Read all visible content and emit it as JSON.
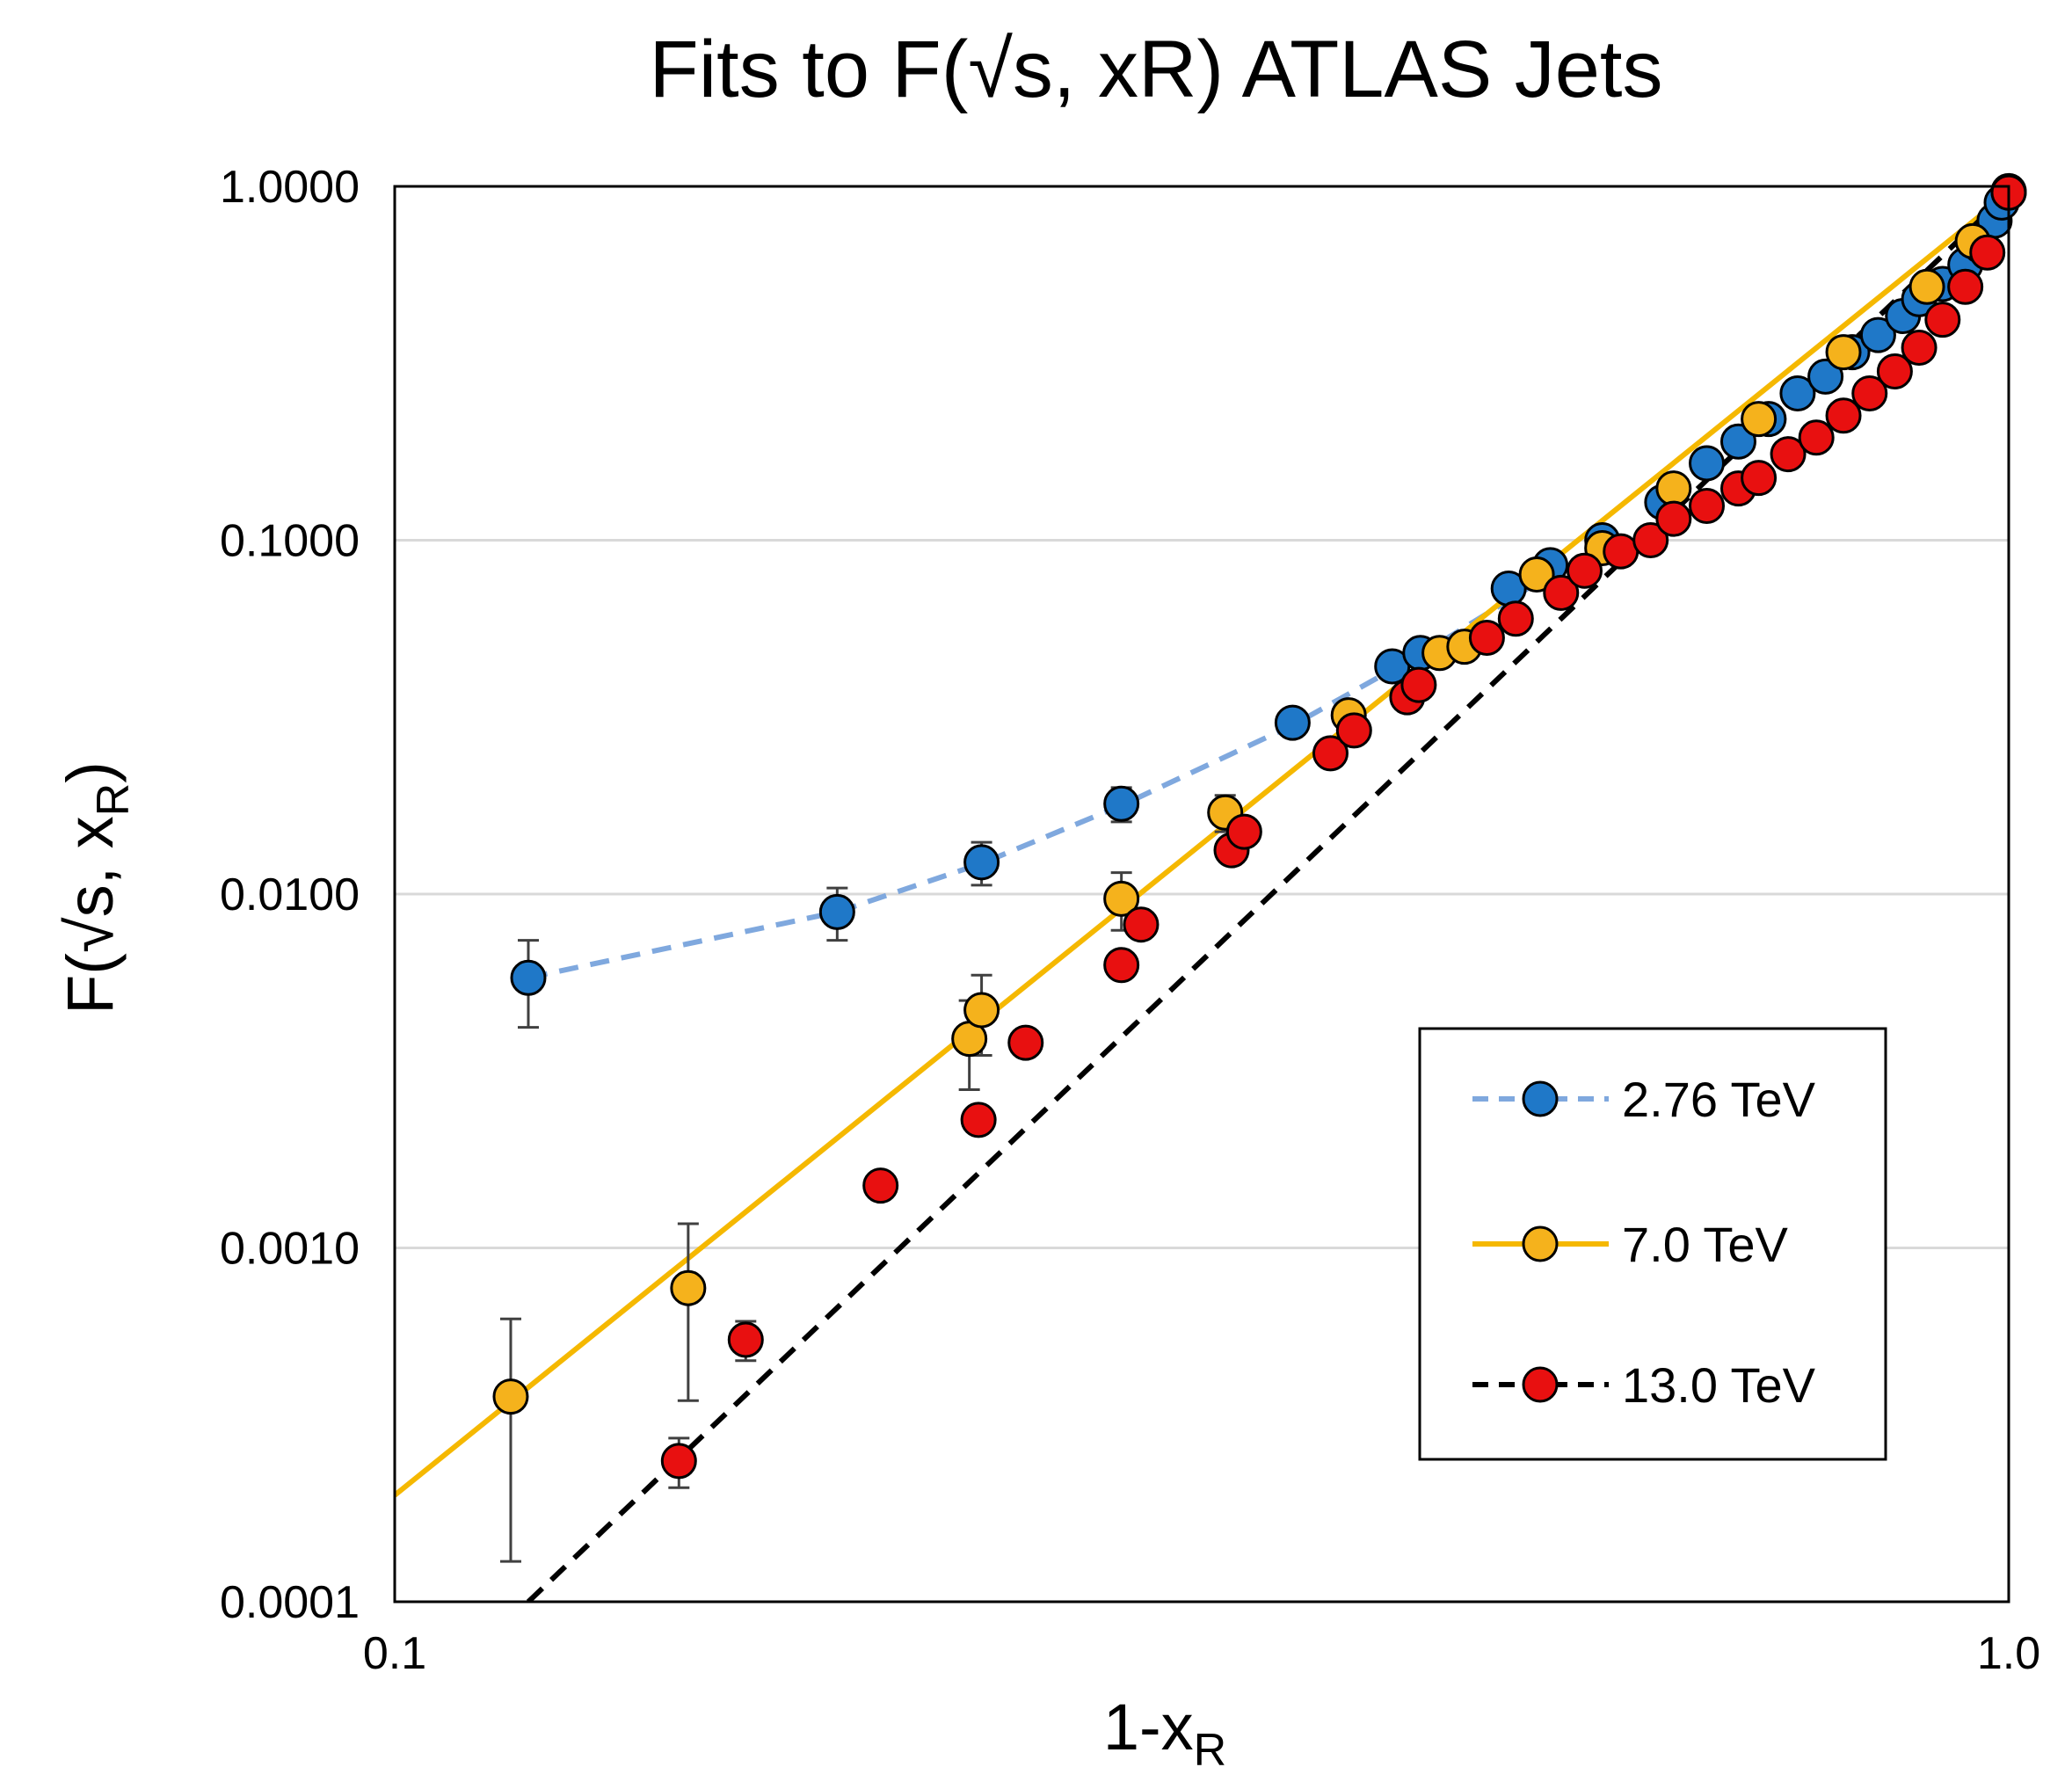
{
  "chart_data": {
    "type": "scatter",
    "title": "Fits to F(√s, xR) ATLAS Jets",
    "xlabel": "1-x",
    "xlabel_sub": "R",
    "ylabel": "F(√s, x",
    "ylabel_sub": "R",
    "ylabel_close": ")",
    "xscale": "log",
    "yscale": "log",
    "xlim": [
      0.1,
      1.0
    ],
    "ylim": [
      0.0001,
      1.0
    ],
    "x_ticks": [
      0.1,
      1.0
    ],
    "x_tick_labels": [
      "0.1",
      "1.0"
    ],
    "y_ticks": [
      0.0001,
      0.001,
      0.01,
      0.1,
      1.0
    ],
    "y_tick_labels": [
      "0.0001",
      "0.0010",
      "0.0100",
      "0.1000",
      "1.0000"
    ],
    "grid": "horizontal",
    "legend_position": "bottom-right",
    "series": [
      {
        "name": "2.76 TeV",
        "color": "#1f78c8",
        "line_color": "#7fa8de",
        "line_style": "dashed",
        "points": [
          [
            0.121,
            0.0058,
            0.0016
          ],
          [
            0.188,
            0.0089,
            0.0015
          ],
          [
            0.231,
            0.0123,
            0.0017
          ],
          [
            0.282,
            0.018,
            0.002
          ],
          [
            0.36,
            0.0305,
            0
          ],
          [
            0.415,
            0.044,
            0
          ],
          [
            0.432,
            0.048,
            0
          ],
          [
            0.49,
            0.073,
            0
          ],
          [
            0.52,
            0.085,
            0
          ],
          [
            0.56,
            0.1,
            0
          ],
          [
            0.61,
            0.128,
            0
          ],
          [
            0.65,
            0.165,
            0
          ],
          [
            0.68,
            0.19,
            0
          ],
          [
            0.71,
            0.22,
            0
          ],
          [
            0.74,
            0.26,
            0
          ],
          [
            0.77,
            0.29,
            0
          ],
          [
            0.8,
            0.34,
            0
          ],
          [
            0.83,
            0.38,
            0
          ],
          [
            0.86,
            0.43,
            0
          ],
          [
            0.88,
            0.48,
            0
          ],
          [
            0.91,
            0.53,
            0
          ],
          [
            0.94,
            0.6,
            0
          ],
          [
            0.96,
            0.68,
            0
          ],
          [
            0.98,
            0.8,
            0
          ],
          [
            0.99,
            0.9,
            0
          ],
          [
            1.0,
            0.97,
            0
          ]
        ],
        "fit": [
          [
            0.121,
            0.0058
          ],
          [
            0.188,
            0.0089
          ],
          [
            0.231,
            0.0122
          ],
          [
            0.282,
            0.0178
          ],
          [
            0.36,
            0.03
          ],
          [
            0.44,
            0.05
          ],
          [
            0.52,
            0.08
          ]
        ]
      },
      {
        "name": "7.0 TeV",
        "color": "#f5b21c",
        "line_color": "#f5b800",
        "line_style": "solid",
        "points": [
          [
            0.118,
            0.00038,
            0.00025
          ],
          [
            0.152,
            0.00077,
            0.0004
          ],
          [
            0.227,
            0.0039,
            0.0011
          ],
          [
            0.231,
            0.0047,
            0.0012
          ],
          [
            0.282,
            0.0097,
            0.0018
          ],
          [
            0.327,
            0.017,
            0.002
          ],
          [
            0.39,
            0.032,
            0
          ],
          [
            0.444,
            0.048,
            0
          ],
          [
            0.46,
            0.05,
            0
          ],
          [
            0.51,
            0.08,
            0
          ],
          [
            0.56,
            0.095,
            0
          ],
          [
            0.62,
            0.14,
            0
          ],
          [
            0.7,
            0.22,
            0
          ],
          [
            0.79,
            0.34,
            0
          ],
          [
            0.89,
            0.52,
            0
          ],
          [
            0.95,
            0.7,
            0
          ],
          [
            1.0,
            0.96,
            0
          ]
        ],
        "fit": [
          [
            0.1,
            0.0002
          ],
          [
            1.0,
            0.96
          ]
        ]
      },
      {
        "name": "13.0 TeV",
        "color": "#e81010",
        "line_color": "#000000",
        "line_style": "dashed",
        "points": [
          [
            0.15,
            0.00025,
            4e-05
          ],
          [
            0.165,
            0.00055,
            7e-05
          ],
          [
            0.2,
            0.0015,
            0
          ],
          [
            0.23,
            0.0023,
            0
          ],
          [
            0.246,
            0.0038,
            0
          ],
          [
            0.282,
            0.0063,
            0
          ],
          [
            0.29,
            0.0082,
            0
          ],
          [
            0.33,
            0.0133,
            0
          ],
          [
            0.336,
            0.015,
            0
          ],
          [
            0.38,
            0.025,
            0
          ],
          [
            0.393,
            0.029,
            0
          ],
          [
            0.424,
            0.036,
            0
          ],
          [
            0.431,
            0.039,
            0
          ],
          [
            0.475,
            0.053,
            0
          ],
          [
            0.495,
            0.06,
            0
          ],
          [
            0.528,
            0.071,
            0
          ],
          [
            0.546,
            0.082,
            0
          ],
          [
            0.575,
            0.093,
            0
          ],
          [
            0.6,
            0.1,
            0
          ],
          [
            0.62,
            0.115,
            0
          ],
          [
            0.65,
            0.125,
            0
          ],
          [
            0.68,
            0.14,
            0
          ],
          [
            0.7,
            0.15,
            0
          ],
          [
            0.73,
            0.175,
            0
          ],
          [
            0.76,
            0.195,
            0
          ],
          [
            0.79,
            0.225,
            0
          ],
          [
            0.82,
            0.26,
            0
          ],
          [
            0.85,
            0.3,
            0
          ],
          [
            0.88,
            0.35,
            0
          ],
          [
            0.91,
            0.42,
            0
          ],
          [
            0.94,
            0.52,
            0
          ],
          [
            0.97,
            0.65,
            0
          ],
          [
            1.0,
            0.96,
            0
          ]
        ],
        "fit": [
          [
            0.121,
            0.0001
          ],
          [
            1.0,
            0.96
          ]
        ]
      }
    ]
  }
}
